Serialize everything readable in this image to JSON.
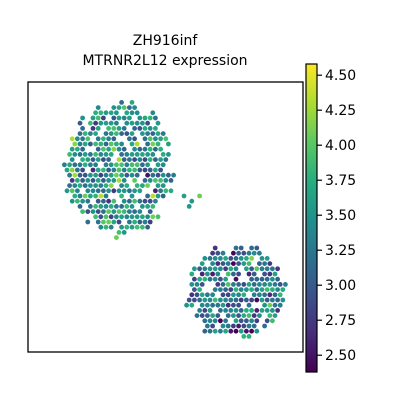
{
  "chart_data": {
    "type": "scatter",
    "title": "ZH916inf",
    "subtitle": "MTRNR2L12 expression",
    "xlabel": "",
    "ylabel": "",
    "grid": false,
    "colormap": "viridis",
    "colorbar": {
      "range": [
        2.38,
        4.58
      ],
      "ticks": [
        2.5,
        2.75,
        3.0,
        3.25,
        3.5,
        3.75,
        4.0,
        4.25,
        4.5
      ],
      "tick_labels": [
        "2.50",
        "2.75",
        "3.00",
        "3.25",
        "3.50",
        "3.75",
        "4.00",
        "4.25",
        "4.50"
      ]
    },
    "regions": [
      {
        "label": "upper-left tissue section",
        "cx": 0.33,
        "cy": 0.68,
        "rx": 0.19,
        "ry": 0.24,
        "mean": 3.45,
        "density": 0.9
      },
      {
        "label": "lower-right tissue section",
        "cx": 0.76,
        "cy": 0.22,
        "rx": 0.18,
        "ry": 0.17,
        "mean": 3.2,
        "density": 0.88
      },
      {
        "label": "small middle patch",
        "cx": 0.6,
        "cy": 0.56,
        "rx": 0.05,
        "ry": 0.03,
        "mean": 3.9,
        "density": 0.6
      }
    ]
  }
}
